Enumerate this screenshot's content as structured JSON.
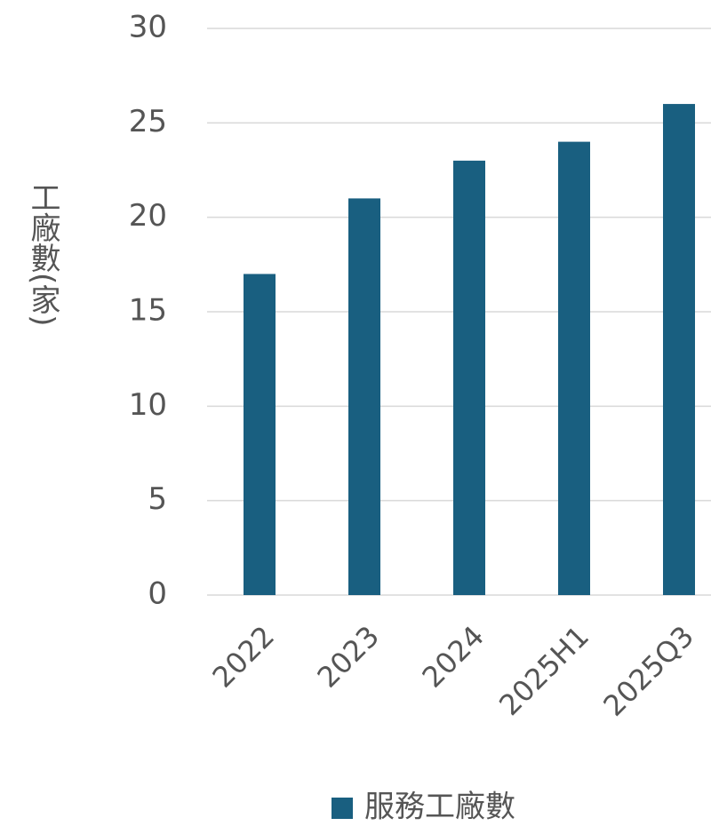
{
  "chart_data": {
    "type": "bar",
    "y_label": "工廠數(家)",
    "categories": [
      "2022",
      "2023",
      "2024",
      "2025H1",
      "2025Q3"
    ],
    "series": [
      {
        "name": "服務工廠數",
        "color": "#195f80",
        "values": [
          17,
          21,
          23,
          24,
          26
        ]
      }
    ],
    "ylim": [
      0,
      30
    ],
    "yticks": [
      0,
      5,
      10,
      15,
      20,
      25,
      30
    ],
    "grid": true,
    "legend": "bottom"
  }
}
